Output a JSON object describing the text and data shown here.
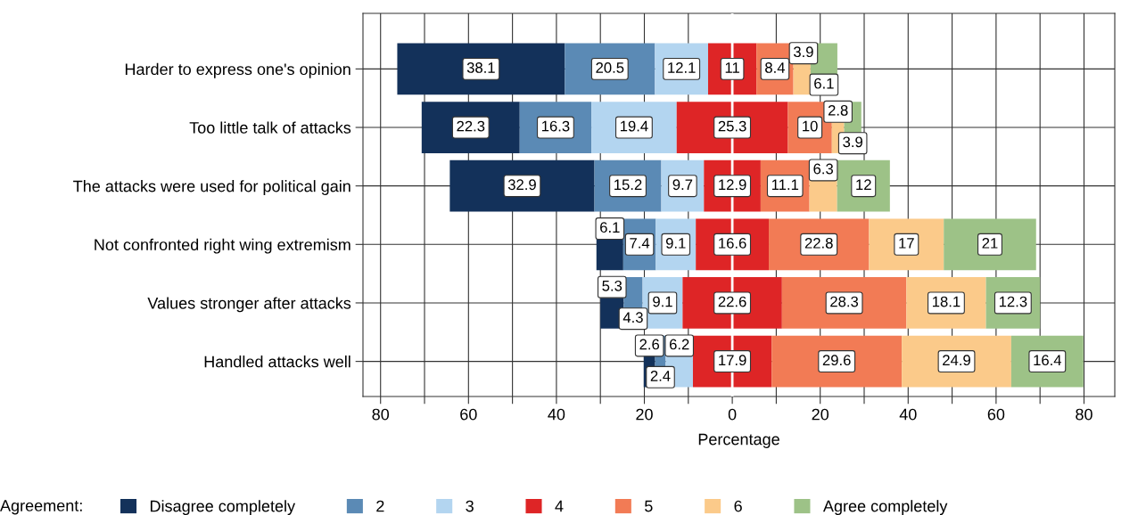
{
  "chart_data": {
    "type": "bar",
    "orientation": "horizontal",
    "categories": [
      "Harder to express one's opinion",
      "Too little talk of attacks",
      "The attacks were used for political gain",
      "Not confronted right wing extremism",
      "Values stronger after attacks",
      "Handled attacks well"
    ],
    "series": [
      {
        "name": "Disagree completely",
        "color": "#13315a",
        "values": [
          38.1,
          22.3,
          32.9,
          6.1,
          5.3,
          2.6
        ],
        "base": [
          -76.2,
          -70.65,
          -64.25,
          -30.9,
          -30.0,
          -20.15
        ]
      },
      {
        "name": "2",
        "color": "#5b8ab5",
        "values": [
          20.5,
          16.3,
          15.2,
          7.4,
          4.3,
          2.4
        ],
        "base": [
          -38.1,
          -48.35,
          -31.35,
          -24.8,
          -24.7,
          -17.55
        ]
      },
      {
        "name": "3",
        "color": "#b3d5f0",
        "values": [
          12.1,
          19.4,
          9.7,
          9.1,
          9.1,
          6.2
        ],
        "base": [
          -17.6,
          -32.05,
          -16.15,
          -17.4,
          -20.4,
          -15.15
        ]
      },
      {
        "name": "4",
        "color": "#de2526",
        "values": [
          11,
          25.3,
          12.9,
          16.6,
          22.6,
          17.9
        ],
        "base": [
          -5.5,
          -12.65,
          -6.45,
          -8.3,
          -11.3,
          -8.95
        ]
      },
      {
        "name": "5",
        "color": "#f27b55",
        "values": [
          8.4,
          10,
          11.1,
          22.8,
          28.3,
          29.6
        ],
        "base": [
          5.5,
          12.65,
          6.45,
          8.3,
          11.3,
          8.95
        ]
      },
      {
        "name": "6",
        "color": "#fbca8a",
        "values": [
          3.9,
          2.8,
          6.3,
          17,
          18.1,
          24.9
        ],
        "base": [
          13.9,
          22.65,
          17.55,
          31.1,
          39.6,
          38.55
        ]
      },
      {
        "name": "Agree completely",
        "color": "#9dc287",
        "values": [
          6.1,
          3.9,
          12,
          21,
          12.3,
          16.4
        ],
        "base": [
          17.8,
          25.45,
          23.85,
          48.1,
          57.7,
          63.45
        ]
      }
    ],
    "data_labels": true,
    "xlabel": "Percentage",
    "legend_title": "Agreement:",
    "legend": "bottom",
    "grid": true,
    "xlim": [
      -84,
      87
    ],
    "xticks": [
      {
        "value": -80,
        "label": "80"
      },
      {
        "value": -70,
        "label": null
      },
      {
        "value": -60,
        "label": "60"
      },
      {
        "value": -50,
        "label": null
      },
      {
        "value": -40,
        "label": "40"
      },
      {
        "value": -30,
        "label": null
      },
      {
        "value": -20,
        "label": "20"
      },
      {
        "value": -10,
        "label": null
      },
      {
        "value": 0,
        "label": "0"
      },
      {
        "value": 10,
        "label": null
      },
      {
        "value": 20,
        "label": "20"
      },
      {
        "value": 30,
        "label": null
      },
      {
        "value": 40,
        "label": "40"
      },
      {
        "value": 50,
        "label": null
      },
      {
        "value": 60,
        "label": "60"
      },
      {
        "value": 70,
        "label": null
      },
      {
        "value": 80,
        "label": "80"
      }
    ],
    "ref_lines": [
      {
        "axis": "x",
        "value": 0,
        "color": "#ffffff"
      }
    ]
  }
}
